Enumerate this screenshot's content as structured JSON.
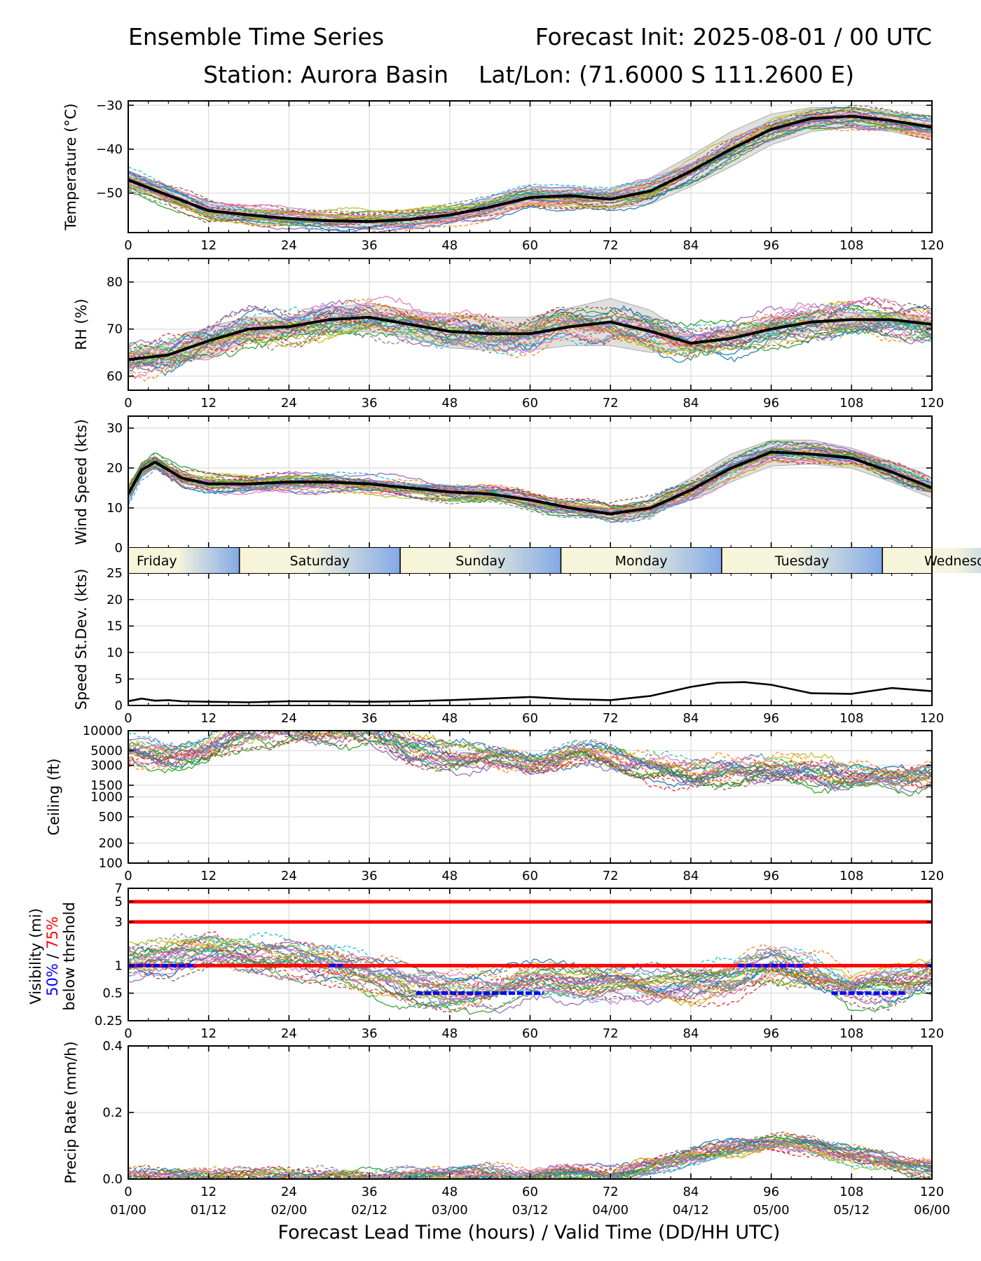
{
  "header": {
    "title": "Ensemble Time Series",
    "init": "Forecast Init: 2025-08-01 / 00 UTC",
    "station": "Station: Aurora Basin",
    "latlon": "Lat/Lon: (71.6000 S 111.2600 E)"
  },
  "xaxis": {
    "hour_ticks": [
      "0",
      "12",
      "24",
      "36",
      "48",
      "60",
      "72",
      "84",
      "96",
      "108",
      "120"
    ],
    "valid_ticks": [
      "01/00",
      "01/12",
      "02/00",
      "02/12",
      "03/00",
      "03/12",
      "04/00",
      "04/12",
      "05/00",
      "05/12",
      "06/00"
    ],
    "label": "Forecast Lead Time (hours) / Valid Time (DD/HH UTC)"
  },
  "day_band": {
    "days": [
      {
        "label": "Friday",
        "start_hour": 0,
        "end_hour": 16.6
      },
      {
        "label": "Saturday",
        "start_hour": 16.6,
        "end_hour": 40.6
      },
      {
        "label": "Sunday",
        "start_hour": 40.6,
        "end_hour": 64.6
      },
      {
        "label": "Monday",
        "start_hour": 64.6,
        "end_hour": 88.6
      },
      {
        "label": "Tuesday",
        "start_hour": 88.6,
        "end_hour": 112.6
      },
      {
        "label": "Wednesday",
        "start_hour": 112.6,
        "end_hour": 136.6
      }
    ]
  },
  "visibility_label": {
    "line1": "Visibility (mi)",
    "p50": "50%",
    "slash": " / ",
    "p75": "75%",
    "line3": "below thrshold"
  },
  "colors": {
    "mean": "#000000",
    "threshold": "#ff0000",
    "below_marker": "#0000ff",
    "spread": "#d9d9d9",
    "members": [
      "#1f77b4",
      "#ff7f0e",
      "#2ca02c",
      "#d62728",
      "#9467bd",
      "#8c564b",
      "#e377c2",
      "#7f7f7f",
      "#bcbd22",
      "#17becf"
    ]
  },
  "chart_data": [
    {
      "id": "temperature",
      "type": "line",
      "ylabel": "Temperature (°C)",
      "ylim": [
        -59,
        -29
      ],
      "yticks": [
        -30,
        -40,
        -50
      ],
      "ytick_labels": [
        "−30",
        "−40",
        "−50"
      ],
      "x": [
        0,
        6,
        12,
        18,
        24,
        30,
        36,
        42,
        48,
        54,
        60,
        66,
        72,
        78,
        84,
        90,
        96,
        102,
        108,
        114,
        120
      ],
      "series": [
        {
          "kind": "mean",
          "values": [
            -47,
            -50.5,
            -54,
            -55,
            -55.8,
            -56.3,
            -56.5,
            -56,
            -55,
            -53.2,
            -51,
            -50.6,
            -51.4,
            -49.5,
            -45,
            -40,
            -35.5,
            -33,
            -32.5,
            -33.5,
            -35
          ]
        }
      ],
      "spread": {
        "lower": [
          -48.5,
          -52,
          -55.5,
          -56.5,
          -57.3,
          -57.8,
          -57.8,
          -57.3,
          -56.5,
          -55,
          -53,
          -52.6,
          -53.5,
          -52.5,
          -48.5,
          -44,
          -39,
          -36,
          -35,
          -36,
          -38
        ],
        "upper": [
          -45.5,
          -49,
          -52.5,
          -53.5,
          -54.3,
          -54.8,
          -55.2,
          -54.7,
          -53.5,
          -51.4,
          -49,
          -48.6,
          -49.3,
          -46.5,
          -41.5,
          -36,
          -32,
          -30.5,
          -30.5,
          -31.5,
          -32.5
        ]
      }
    },
    {
      "id": "rh",
      "type": "line",
      "ylabel": "RH (%)",
      "ylim": [
        57,
        85
      ],
      "yticks": [
        60,
        70,
        80
      ],
      "ytick_labels": [
        "60",
        "70",
        "80"
      ],
      "x": [
        0,
        6,
        12,
        18,
        24,
        30,
        36,
        42,
        48,
        54,
        60,
        66,
        72,
        78,
        84,
        90,
        96,
        102,
        108,
        114,
        120
      ],
      "series": [
        {
          "kind": "mean",
          "values": [
            63.5,
            64.5,
            67.5,
            70,
            70.5,
            72,
            72.5,
            71,
            69.5,
            69,
            69,
            70.5,
            71.5,
            69.5,
            67,
            68,
            70,
            71.5,
            72,
            72,
            71
          ]
        }
      ],
      "spread": {
        "lower": [
          62,
          62.5,
          64,
          67.5,
          68.5,
          69.5,
          69.5,
          68,
          66,
          65.5,
          65.5,
          66.5,
          66.5,
          65,
          65.5,
          66.5,
          68,
          69.5,
          70.5,
          70.5,
          69.5
        ],
        "upper": [
          65,
          67,
          70.5,
          72.5,
          72.5,
          74.5,
          75.5,
          74,
          73,
          72.5,
          72.5,
          74.5,
          76.5,
          74,
          68.5,
          69.5,
          72,
          73.5,
          73.5,
          73.5,
          72.5
        ]
      }
    },
    {
      "id": "wind_speed",
      "type": "line",
      "ylabel": "Wind Speed (kts)",
      "ylim": [
        0,
        33
      ],
      "yticks": [
        0,
        10,
        20,
        30
      ],
      "ytick_labels": [
        "0",
        "10",
        "20",
        "30"
      ],
      "x": [
        0,
        2,
        4,
        6,
        8,
        12,
        18,
        24,
        30,
        36,
        42,
        48,
        54,
        60,
        66,
        72,
        78,
        84,
        90,
        96,
        102,
        108,
        114,
        120
      ],
      "series": [
        {
          "kind": "mean",
          "values": [
            13.5,
            19.5,
            21.5,
            19.5,
            17.5,
            16,
            16,
            16.5,
            16.5,
            16,
            15,
            14,
            13.5,
            12,
            10,
            8.5,
            10,
            14.5,
            20,
            24,
            23.5,
            22.5,
            19,
            15
          ]
        }
      ],
      "spread": {
        "lower": [
          12.5,
          18,
          20,
          18.5,
          16.5,
          15,
          15,
          15.5,
          15.5,
          14.8,
          13.8,
          12.8,
          12,
          10.5,
          8.8,
          7.5,
          8.5,
          12,
          16.5,
          20.5,
          21,
          20,
          16.5,
          12.5
        ],
        "upper": [
          14.5,
          21,
          23,
          20.5,
          18.5,
          17,
          17,
          17.5,
          17.5,
          17,
          16.2,
          15.2,
          14.8,
          13.5,
          11.5,
          9.8,
          12,
          17.5,
          23.5,
          27,
          27,
          25,
          21.5,
          17.5
        ]
      }
    },
    {
      "id": "speed_stdev",
      "type": "line",
      "ylabel": "Speed St.Dev. (kts)",
      "ylim": [
        0,
        25
      ],
      "yticks": [
        0,
        5,
        10,
        15,
        20,
        25
      ],
      "ytick_labels": [
        "0",
        "5",
        "10",
        "15",
        "20",
        "25"
      ],
      "x": [
        0,
        2,
        4,
        6,
        8,
        12,
        18,
        24,
        30,
        36,
        42,
        48,
        54,
        60,
        66,
        72,
        78,
        84,
        88,
        92,
        96,
        102,
        108,
        114,
        120
      ],
      "series": [
        {
          "kind": "mean",
          "values": [
            0.8,
            1.3,
            0.9,
            1,
            0.8,
            0.7,
            0.6,
            0.8,
            0.8,
            0.7,
            0.8,
            1,
            1.3,
            1.6,
            1.2,
            1,
            1.8,
            3.5,
            4.3,
            4.4,
            3.9,
            2.3,
            2.2,
            3.3,
            2.7
          ]
        }
      ]
    },
    {
      "id": "ceiling",
      "type": "line",
      "scale": "log",
      "ylabel": "Ceiling (ft)",
      "ylim": [
        100,
        10000
      ],
      "yticks": [
        100,
        200,
        500,
        1000,
        1500,
        3000,
        5000,
        10000
      ],
      "ytick_labels": [
        "100",
        "200",
        "500",
        "1000",
        "1500",
        "3000",
        "5000",
        "10000"
      ],
      "x": [
        0,
        6,
        12,
        18,
        24,
        30,
        36,
        42,
        48,
        54,
        60,
        66,
        72,
        78,
        84,
        90,
        96,
        102,
        108,
        114,
        120
      ],
      "series": [
        {
          "kind": "typical",
          "values": [
            5000,
            4200,
            4800,
            10000,
            10000,
            10000,
            10000,
            5000,
            4000,
            3600,
            3800,
            4200,
            3800,
            2800,
            2200,
            2400,
            2600,
            2400,
            2000,
            2100,
            2300
          ]
        }
      ]
    },
    {
      "id": "visibility",
      "type": "line",
      "scale": "log",
      "ylabel": "Visibility (mi)",
      "ylim": [
        0.25,
        7
      ],
      "yticks": [
        0.25,
        0.5,
        1,
        3,
        5,
        7
      ],
      "ytick_labels": [
        "0.25",
        "0.5",
        "1",
        "3",
        "5",
        "7"
      ],
      "thresholds": [
        5,
        3,
        1
      ],
      "x": [
        0,
        6,
        12,
        18,
        24,
        30,
        36,
        42,
        48,
        54,
        60,
        66,
        72,
        78,
        84,
        90,
        96,
        102,
        108,
        114,
        120
      ],
      "series": [
        {
          "kind": "typical",
          "values": [
            1.1,
            1.2,
            1.5,
            1.3,
            1.2,
            1.05,
            0.8,
            0.6,
            0.5,
            0.55,
            0.6,
            0.7,
            0.65,
            0.6,
            0.6,
            0.7,
            1.0,
            0.8,
            0.55,
            0.6,
            0.8
          ]
        }
      ],
      "below_threshold_hours": [
        {
          "level": 1,
          "start": 0,
          "end": 10
        },
        {
          "level": 1,
          "start": 30,
          "end": 32
        },
        {
          "level": 0.5,
          "start": 43,
          "end": 62
        },
        {
          "level": 1,
          "start": 91,
          "end": 101
        },
        {
          "level": 0.5,
          "start": 105,
          "end": 116
        },
        {
          "level": 1,
          "start": 119.5,
          "end": 120
        }
      ]
    },
    {
      "id": "precip",
      "type": "line",
      "ylabel": "Precip Rate (mm/h)",
      "ylim": [
        0,
        0.4
      ],
      "yticks": [
        0,
        0.2,
        0.4
      ],
      "ytick_labels": [
        "0.0",
        "0.2",
        "0.4"
      ],
      "x": [
        0,
        12,
        24,
        36,
        48,
        60,
        66,
        72,
        78,
        84,
        90,
        96,
        102,
        108,
        114,
        120
      ],
      "series": [
        {
          "kind": "typical",
          "values": [
            0.005,
            0.004,
            0.003,
            0.004,
            0.012,
            0.015,
            0.01,
            0.012,
            0.04,
            0.07,
            0.09,
            0.11,
            0.1,
            0.07,
            0.045,
            0.03
          ]
        }
      ]
    }
  ]
}
